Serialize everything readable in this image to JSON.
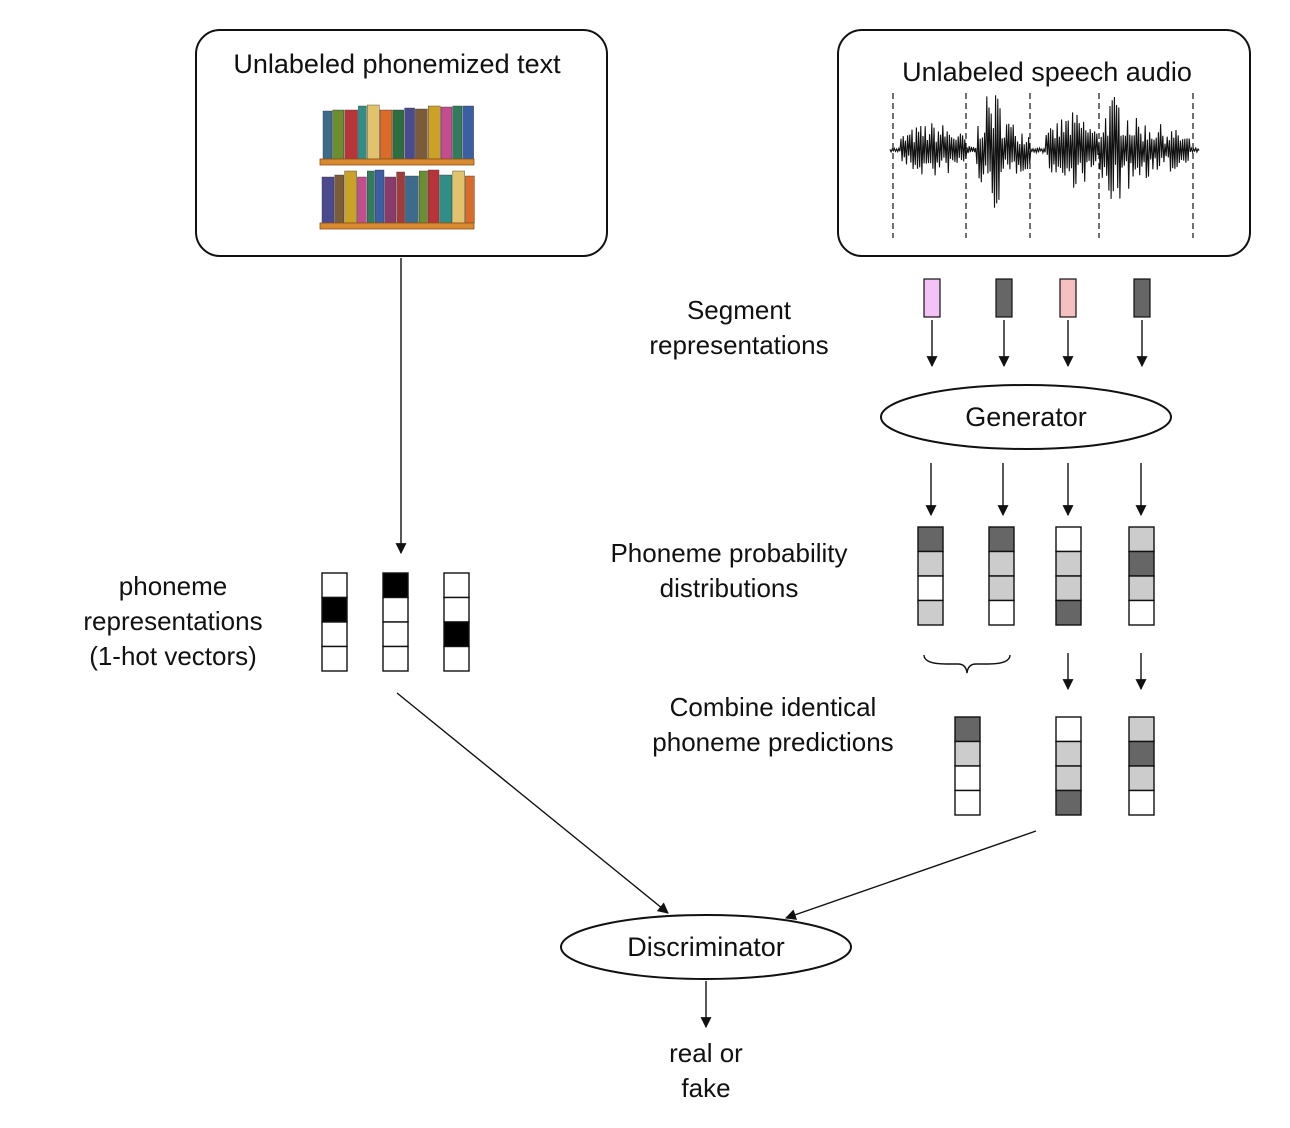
{
  "text_box": {
    "title": "Unlabeled phonemized text"
  },
  "audio_box": {
    "title": "Unlabeled speech audio"
  },
  "labels": {
    "segment_line1": "Segment",
    "segment_line2": "representations",
    "phonprob_line1": "Phoneme probability",
    "phonprob_line2": "distributions",
    "combine_line1": "Combine identical",
    "combine_line2": "phoneme predictions",
    "phonrep_line1": "phoneme",
    "phonrep_line2": "representations",
    "phonrep_line3": "(1-hot vectors)"
  },
  "generator": {
    "label": "Generator"
  },
  "discriminator": {
    "label": "Discriminator"
  },
  "output": {
    "line1": "real or",
    "line2": "fake"
  },
  "colors": {
    "dark": "#666666",
    "light": "#cccccc",
    "white": "#ffffff",
    "black": "#000000",
    "segment_pink": "#f4c3f6",
    "segment_salmon": "#f6c0c0",
    "segment_gray": "#666666"
  },
  "segment_colors": [
    "segment_pink",
    "segment_gray",
    "segment_salmon",
    "segment_gray"
  ],
  "one_hot_vectors": [
    [
      "white",
      "black",
      "white",
      "white"
    ],
    [
      "black",
      "white",
      "white",
      "white"
    ],
    [
      "white",
      "white",
      "black",
      "white"
    ]
  ],
  "phoneme_distributions": [
    [
      "dark",
      "light",
      "white",
      "light"
    ],
    [
      "dark",
      "light",
      "light",
      "white"
    ],
    [
      "white",
      "light",
      "light",
      "dark"
    ],
    [
      "light",
      "dark",
      "light",
      "white"
    ]
  ],
  "combined_predictions": [
    [
      "dark",
      "light",
      "white",
      "white"
    ],
    [
      "white",
      "light",
      "light",
      "dark"
    ],
    [
      "light",
      "dark",
      "light",
      "white"
    ]
  ],
  "icons": {
    "bookshelf": "bookshelf-icon",
    "waveform": "speech-waveform-icon"
  }
}
